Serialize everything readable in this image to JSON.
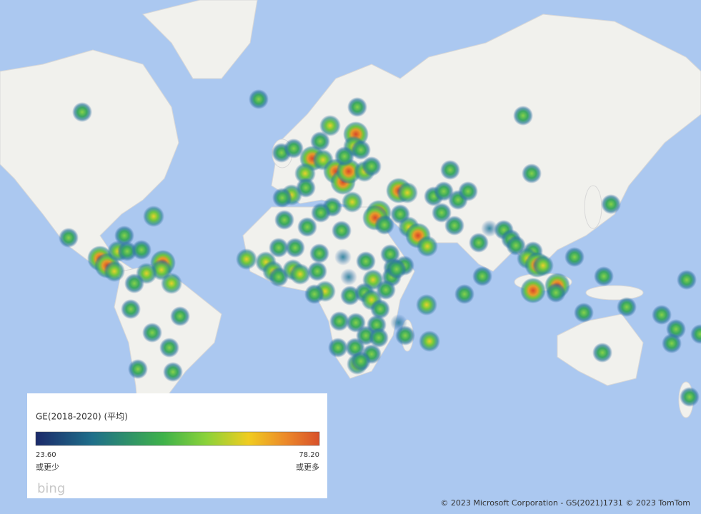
{
  "legend": {
    "title": "GE(2018-2020) (平均)",
    "min_label": "23.60",
    "max_label": "78.20",
    "min_caption": "或更少",
    "max_caption": "或更多"
  },
  "logo": "bing",
  "attribution": "© 2023 Microsoft Corporation - GS(2021)1731  © 2023 TomTom"
}
